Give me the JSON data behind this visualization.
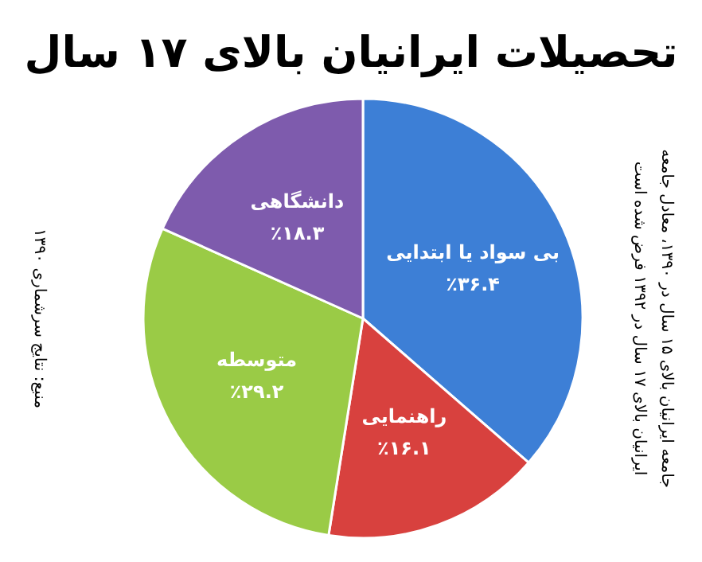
{
  "chart_data": {
    "type": "pie",
    "title": "تحصیلات ایرانیان بالای ۱۷ سال",
    "categories": [
      "بی سواد یا ابتدایی",
      "راهنمایی",
      "متوسطه",
      "دانشگاهی"
    ],
    "values": [
      36.4,
      16.1,
      29.2,
      18.3
    ],
    "value_labels": [
      "٪۳۶.۴",
      "٪۱۶.۱",
      "٪۲۹.۲",
      "٪۱۸.۳"
    ],
    "colors": [
      "#3d7fd6",
      "#d8413e",
      "#9acb46",
      "#7e5bad"
    ],
    "annotations": [
      "منبع: نتایج سرشماری ۱۳۹۰",
      "جامعه ایرانیان بالای ۱۵ سال در ۱۳۹۰، معادل جامعه",
      "ایرانیان بالای ۱۷ سال در ۱۳۹۲ فرض شده است"
    ]
  }
}
